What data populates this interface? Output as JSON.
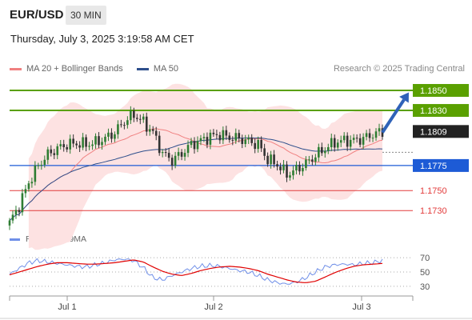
{
  "header": {
    "symbol": "EUR/USD",
    "timeframe": "30 MIN"
  },
  "datetime": "Thursday, July 3, 2025 3:19:58 AM CET",
  "legend": {
    "items": [
      {
        "label": "MA 20 + Bollinger Bands",
        "color": "#f08080"
      },
      {
        "label": "MA 50",
        "color": "#2e4f8c"
      }
    ],
    "credit": "Research © 2025 Trading Central"
  },
  "rsi_legend": {
    "items": [
      {
        "label": "RSI",
        "color": "#6f8fe8"
      },
      {
        "label": "9MA",
        "color": "#e00000"
      }
    ]
  },
  "colors": {
    "resistance": "#5aa000",
    "pivot": "#1d5bd6",
    "support": "#e23b3b",
    "current": "#222222",
    "bull_candle": "#2e7d32",
    "bear_candle": "#333333",
    "band_fill": "#fde2e2",
    "arrow": "#2f62b8"
  },
  "chart_data": [
    {
      "type": "candlestick",
      "title": "EUR/USD 30 MIN",
      "x_ticks": [
        "Jul 1",
        "Jul 2",
        "Jul 3"
      ],
      "ylim": [
        1.1715,
        1.1862
      ],
      "current_price": 1.1809,
      "levels": [
        {
          "value": 1.185,
          "label": "1.1850",
          "kind": "resistance"
        },
        {
          "value": 1.183,
          "label": "1.1830",
          "kind": "resistance"
        },
        {
          "value": 1.1775,
          "label": "1.1775",
          "kind": "pivot"
        },
        {
          "value": 1.175,
          "label": "1.1750",
          "kind": "support"
        },
        {
          "value": 1.173,
          "label": "1.1730",
          "kind": "support"
        }
      ],
      "current_label": "1.1809",
      "forecast_arrow": {
        "from": 1.1808,
        "to": 1.1848
      },
      "series": [
        {
          "name": "MA 20 + Bollinger Bands"
        },
        {
          "name": "MA 50"
        }
      ],
      "close_anchors": [
        1.1718,
        1.1735,
        1.1758,
        1.1775,
        1.1786,
        1.1792,
        1.1796,
        1.1797,
        1.1796,
        1.1798,
        1.1802,
        1.1808,
        1.1819,
        1.1826,
        1.1818,
        1.1808,
        1.1787,
        1.178,
        1.1787,
        1.1796,
        1.18,
        1.1804,
        1.1806,
        1.1803,
        1.1802,
        1.1799,
        1.1796,
        1.1781,
        1.1776,
        1.1766,
        1.1771,
        1.1777,
        1.1785,
        1.1792,
        1.1798,
        1.18,
        1.18,
        1.1802,
        1.1806,
        1.1809
      ]
    },
    {
      "type": "line",
      "title": "RSI",
      "ylim": [
        22,
        78
      ],
      "y_ticks": [
        70,
        50,
        30
      ],
      "series": [
        {
          "name": "RSI",
          "values": [
            47,
            55,
            63,
            66,
            64,
            62,
            60,
            58,
            57,
            60,
            63,
            67,
            68,
            66,
            56,
            42,
            39,
            45,
            50,
            55,
            58,
            59,
            58,
            55,
            52,
            50,
            45,
            39,
            35,
            33,
            36,
            42,
            50,
            57,
            60,
            61,
            60,
            62,
            63,
            66
          ]
        },
        {
          "name": "9MA",
          "values": [
            46,
            50,
            54,
            58,
            61,
            63,
            63,
            62,
            61,
            61,
            62,
            63,
            65,
            67,
            64,
            57,
            51,
            47,
            45,
            48,
            52,
            55,
            57,
            58,
            57,
            55,
            52,
            47,
            43,
            39,
            36,
            35,
            37,
            43,
            49,
            54,
            58,
            60,
            61,
            62
          ]
        }
      ]
    }
  ]
}
